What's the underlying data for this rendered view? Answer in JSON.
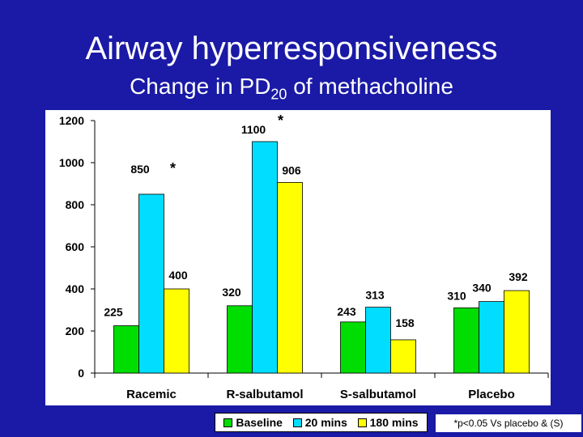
{
  "header": {
    "title": "Airway hyperresponsiveness",
    "subtitle_main": "Change in PD",
    "subtitle_sub": "20",
    "subtitle_rest": " of methacholine"
  },
  "chart_data": {
    "type": "bar",
    "title": "Airway hyperresponsiveness",
    "subtitle": "Change in PD20 of methacholine",
    "categories": [
      "Racemic",
      "R-salbutamol",
      "S-salbutamol",
      "Placebo"
    ],
    "series": [
      {
        "name": "Baseline",
        "color": "#00dd00",
        "values": [
          225,
          320,
          243,
          310
        ]
      },
      {
        "name": "20 mins",
        "color": "#00ddff",
        "values": [
          850,
          1100,
          313,
          340
        ]
      },
      {
        "name": "180 mins",
        "color": "#ffff00",
        "values": [
          400,
          906,
          158,
          392
        ]
      }
    ],
    "yticks": [
      "0",
      "200",
      "400",
      "600",
      "800",
      "1000",
      "1200"
    ],
    "ylim": [
      0,
      1200
    ],
    "grid": false,
    "legend": "bottom",
    "significance": [
      {
        "category": "Racemic",
        "series": "20 mins",
        "label": "*"
      },
      {
        "category": "R-salbutamol",
        "series": "20 mins",
        "label": "*"
      }
    ],
    "footnote": "*p<0.05 Vs placebo & (S)"
  }
}
